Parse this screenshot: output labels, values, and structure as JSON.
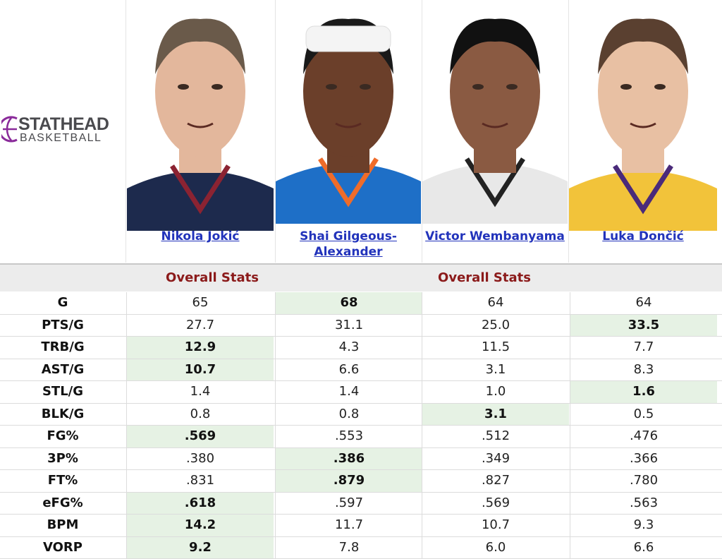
{
  "logo": {
    "top": "STATHEAD",
    "bottom": "BASKETBALL"
  },
  "players": [
    {
      "name": "Nikola Jokić",
      "jersey_color": "#1d2a4d",
      "skin": "#e3b79c",
      "hair": "#6a5a4a",
      "accent": "#8b2332"
    },
    {
      "name": "Shai Gilgeous-Alexander",
      "jersey_color": "#1e6fc7",
      "skin": "#6b3f2a",
      "hair": "#1a1a1a",
      "accent": "#ef6c2a"
    },
    {
      "name": "Victor Wembanyama",
      "jersey_color": "#e8e8e8",
      "skin": "#8a5a42",
      "hair": "#111111",
      "accent": "#222222"
    },
    {
      "name": "Luka Dončić",
      "jersey_color": "#f2c33a",
      "skin": "#e8c0a3",
      "hair": "#5a4030",
      "accent": "#4a2a7a"
    }
  ],
  "section_header": {
    "left": "Overall Stats",
    "right": "Overall Stats"
  },
  "highlight_color": "#e6f2e4",
  "stats": [
    {
      "label": "G",
      "values": [
        "65",
        "68",
        "64",
        "64"
      ],
      "best": 1
    },
    {
      "label": "PTS/G",
      "values": [
        "27.7",
        "31.1",
        "25.0",
        "33.5"
      ],
      "best": 3
    },
    {
      "label": "TRB/G",
      "values": [
        "12.9",
        "4.3",
        "11.5",
        "7.7"
      ],
      "best": 0
    },
    {
      "label": "AST/G",
      "values": [
        "10.7",
        "6.6",
        "3.1",
        "8.3"
      ],
      "best": 0
    },
    {
      "label": "STL/G",
      "values": [
        "1.4",
        "1.4",
        "1.0",
        "1.6"
      ],
      "best": 3
    },
    {
      "label": "BLK/G",
      "values": [
        "0.8",
        "0.8",
        "3.1",
        "0.5"
      ],
      "best": 2
    },
    {
      "label": "FG%",
      "values": [
        ".569",
        ".553",
        ".512",
        ".476"
      ],
      "best": 0
    },
    {
      "label": "3P%",
      "values": [
        ".380",
        ".386",
        ".349",
        ".366"
      ],
      "best": 1
    },
    {
      "label": "FT%",
      "values": [
        ".831",
        ".879",
        ".827",
        ".780"
      ],
      "best": 1
    },
    {
      "label": "eFG%",
      "values": [
        ".618",
        ".597",
        ".569",
        ".563"
      ],
      "best": 0
    },
    {
      "label": "BPM",
      "values": [
        "14.2",
        "11.7",
        "10.7",
        "9.3"
      ],
      "best": 0
    },
    {
      "label": "VORP",
      "values": [
        "9.2",
        "7.8",
        "6.0",
        "6.6"
      ],
      "best": 0
    }
  ]
}
